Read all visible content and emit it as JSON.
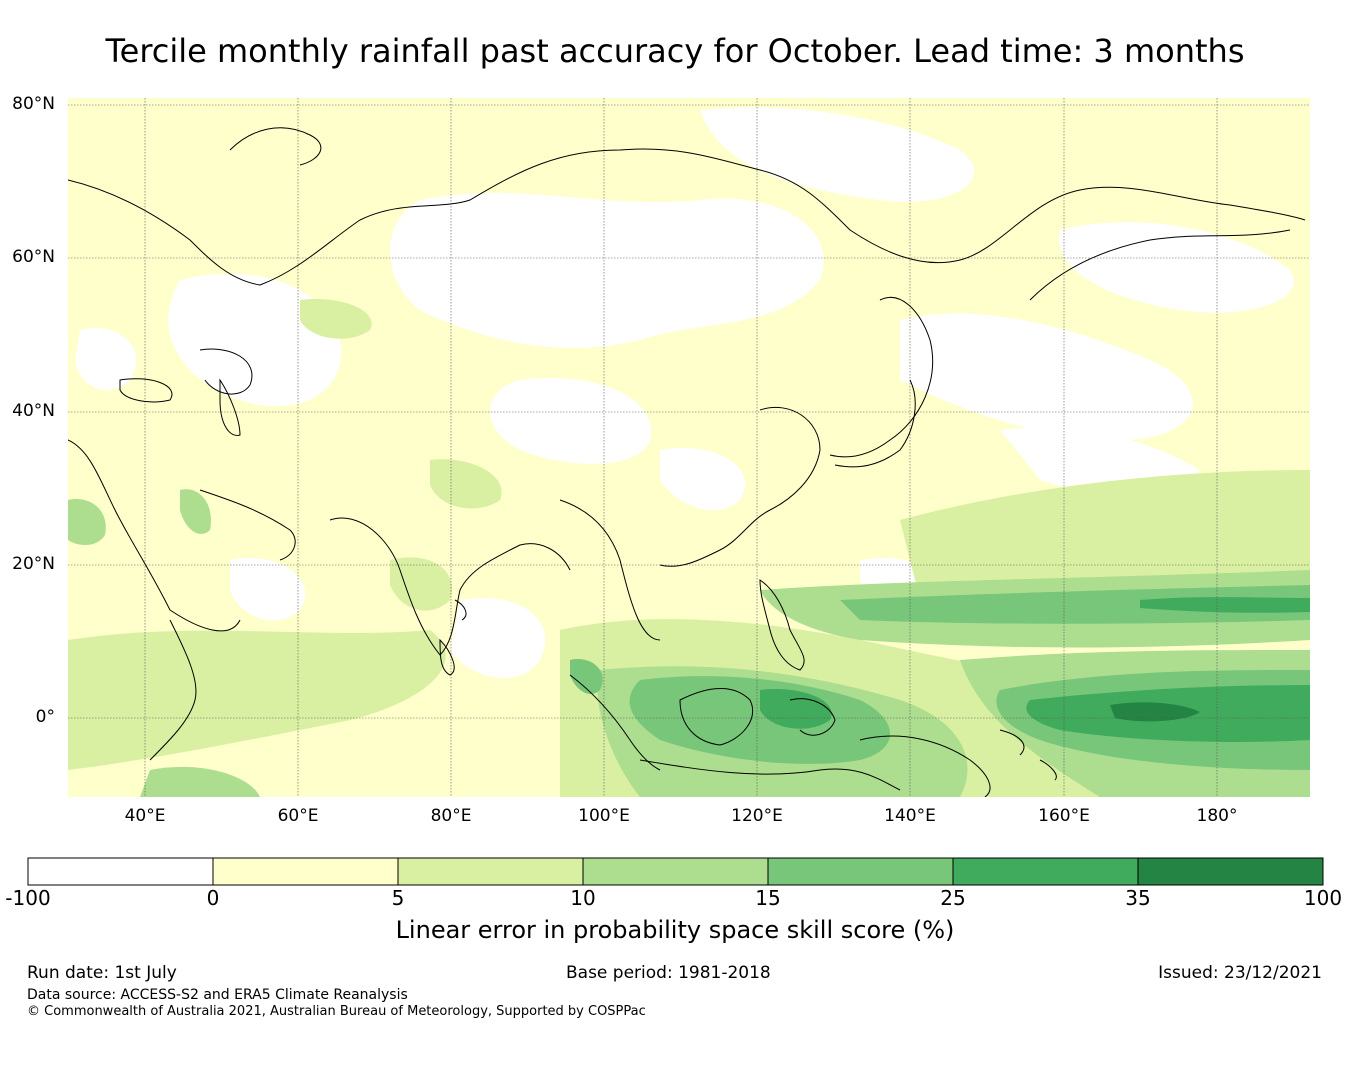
{
  "title": "Tercile monthly rainfall past accuracy for October. Lead time: 3 months",
  "map": {
    "lat_labels": [
      "80°N",
      "60°N",
      "40°N",
      "20°N",
      "0°"
    ],
    "lon_labels": [
      "40°E",
      "60°E",
      "80°E",
      "100°E",
      "120°E",
      "140°E",
      "160°E",
      "180°"
    ],
    "land_color": "#ffffff",
    "coastline_color": "#000000"
  },
  "colorbar": {
    "ticks": [
      "-100",
      "0",
      "5",
      "10",
      "15",
      "25",
      "35",
      "100"
    ],
    "colors": [
      "#ffffff",
      "#ffffcc",
      "#d9f0a3",
      "#addd8e",
      "#78c679",
      "#41ab5d",
      "#238443"
    ],
    "label": "Linear error in probability space skill score (%)"
  },
  "footer": {
    "run_date": "Run date: 1st July",
    "base_period": "Base period: 1981-2018",
    "issued": "Issued: 23/12/2021",
    "data_source": "Data source: ACCESS-S2 and ERA5 Climate Reanalysis",
    "copyright": "© Commonwealth of Australia 2021, Australian Bureau of Meteorology, Supported by COSPPac"
  }
}
